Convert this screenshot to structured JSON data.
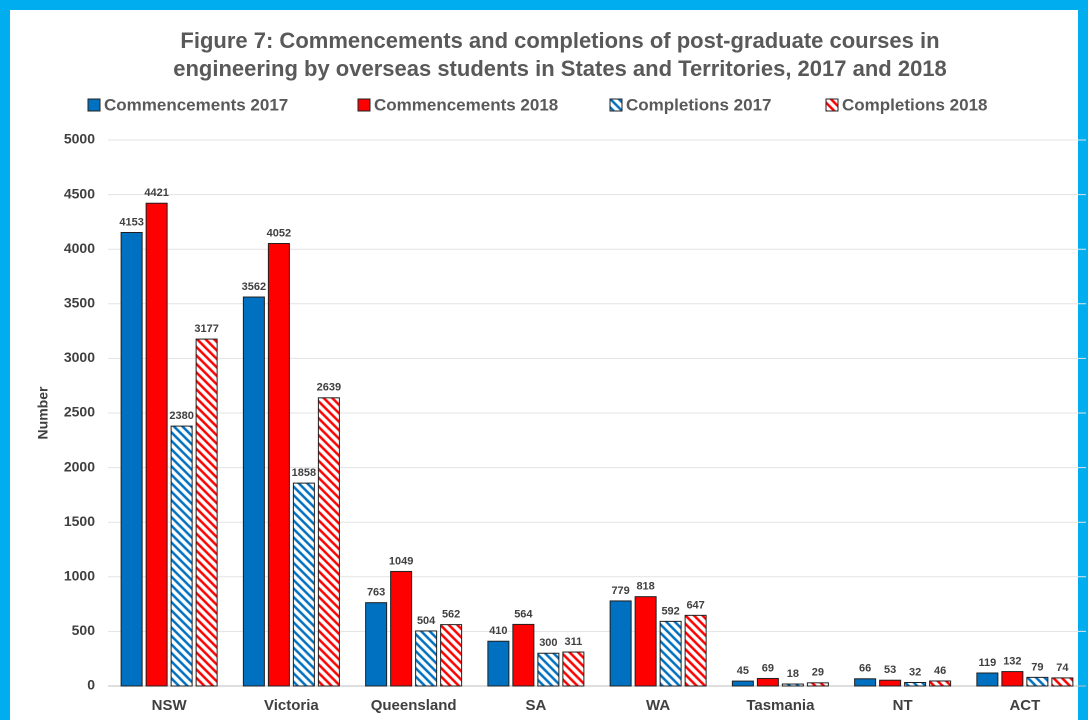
{
  "chart_data": {
    "type": "bar",
    "title": [
      "Figure 7: Commencements and completions of post-graduate courses in",
      "engineering by overseas students in States and Territories, 2017 and 2018"
    ],
    "y_label": "Number",
    "categories": [
      "NSW",
      "Victoria",
      "Queensland",
      "SA",
      "WA",
      "Tasmania",
      "NT",
      "ACT"
    ],
    "series": [
      {
        "name": "Commencements 2017",
        "color": "#0070c0",
        "fill": "solid",
        "values": [
          4153,
          3562,
          763,
          410,
          779,
          45,
          66,
          119
        ]
      },
      {
        "name": "Commencements 2018",
        "color": "#ff0000",
        "fill": "solid",
        "values": [
          4421,
          4052,
          1049,
          564,
          818,
          69,
          53,
          132
        ]
      },
      {
        "name": "Completions 2017",
        "color": "#0070c0",
        "fill": "hatched",
        "values": [
          2380,
          1858,
          504,
          300,
          592,
          18,
          32,
          79
        ]
      },
      {
        "name": "Completions 2018",
        "color": "#ff0000",
        "fill": "hatched",
        "values": [
          3177,
          2639,
          562,
          311,
          647,
          29,
          46,
          74
        ]
      }
    ],
    "ylim": [
      0,
      5000
    ],
    "yticks": [
      0,
      500,
      1000,
      1500,
      2000,
      2500,
      3000,
      3500,
      4000,
      4500,
      5000
    ],
    "grid": true,
    "legend": "top"
  }
}
